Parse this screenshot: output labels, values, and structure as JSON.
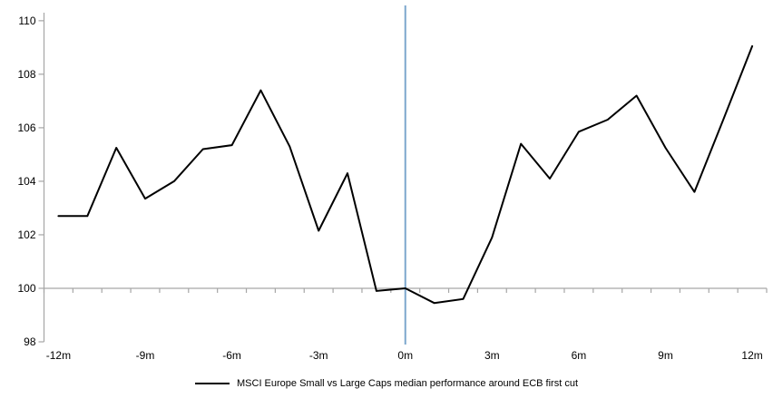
{
  "chart_data": {
    "type": "line",
    "title": "",
    "xlabel": "",
    "ylabel": "",
    "grid": false,
    "legend_position": "bottom",
    "axis_color": "#a6a6a6",
    "text_color": "#000000",
    "background_color": "#ffffff",
    "ylim": [
      98,
      110.3
    ],
    "baseline_value": 100,
    "x_months": [
      -12,
      -11,
      -10,
      -9,
      -8,
      -7,
      -6,
      -5,
      -4,
      -3,
      -2,
      -1,
      0,
      1,
      2,
      3,
      4,
      5,
      6,
      7,
      8,
      9,
      10,
      11,
      12
    ],
    "series": [
      {
        "name": "MSCI Europe Small vs Large Caps median performance around ECB first cut",
        "color": "#000000",
        "line_width": 2,
        "values": [
          102.7,
          102.7,
          105.25,
          103.35,
          104.0,
          105.2,
          105.35,
          107.4,
          105.3,
          102.15,
          104.3,
          99.9,
          100.0,
          99.45,
          99.6,
          101.9,
          105.4,
          104.1,
          105.85,
          106.3,
          107.2,
          105.25,
          103.6,
          106.3,
          109.05
        ]
      }
    ],
    "yticks": [
      {
        "value": 110,
        "label": "110"
      },
      {
        "value": 108,
        "label": "108"
      },
      {
        "value": 106,
        "label": "106"
      },
      {
        "value": 104,
        "label": "104"
      },
      {
        "value": 102,
        "label": "102"
      },
      {
        "value": 100,
        "label": "100"
      },
      {
        "value": 98,
        "label": "98"
      }
    ],
    "xticks": [
      {
        "month": -12,
        "label": "-12m"
      },
      {
        "month": -9,
        "label": "-9m"
      },
      {
        "month": -6,
        "label": "-6m"
      },
      {
        "month": -3,
        "label": "-3m"
      },
      {
        "month": 0,
        "label": "0m"
      },
      {
        "month": 3,
        "label": "3m"
      },
      {
        "month": 6,
        "label": "6m"
      },
      {
        "month": 9,
        "label": "9m"
      },
      {
        "month": 12,
        "label": "12m"
      }
    ],
    "event_line": {
      "month": 0,
      "color": "#7da7cd",
      "width": 2
    }
  }
}
